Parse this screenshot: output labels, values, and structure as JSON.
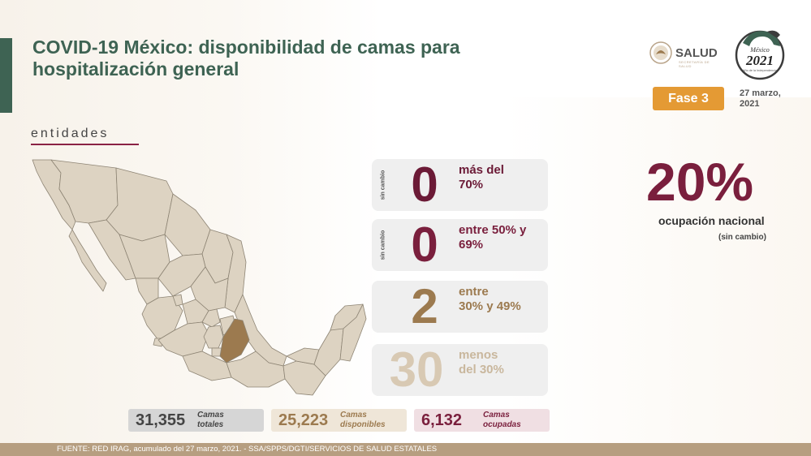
{
  "header": {
    "title_line1": "COVID-19 México: disponibilidad de camas para",
    "title_line2": "hospitalización general",
    "section_label": "entidades"
  },
  "logos": {
    "salud": "SALUD",
    "salud_sub": "SECRETARÍA DE SALUD",
    "badge_top": "México",
    "badge_year": "2021",
    "badge_sub": "Año de la Independencia"
  },
  "phase": {
    "label": "Fase 3",
    "color": "#e49a34"
  },
  "date": {
    "line1": "27 marzo,",
    "line2": "2021"
  },
  "categories": [
    {
      "status": "sin cambio",
      "count": "0",
      "label_line1": "más del",
      "label_line2": "70%",
      "number_color": "#6b1a36",
      "label_color": "#6b1a36"
    },
    {
      "status": "sin cambio",
      "count": "0",
      "label_line1": "entre 50% y",
      "label_line2": "69%",
      "number_color": "#7a1f3d",
      "label_color": "#7a1f3d"
    },
    {
      "status": "",
      "count": "2",
      "label_line1": "entre",
      "label_line2": "30% y 49%",
      "number_color": "#9c7a4f",
      "label_color": "#9c7a4f"
    },
    {
      "status": "",
      "count": "30",
      "label_line1": "menos",
      "label_line2": "del 30%",
      "number_color": "#d8c9b3",
      "label_color": "#c9b79d"
    }
  ],
  "national": {
    "value": "20%",
    "label": "ocupación nacional",
    "note": "(sin cambio)"
  },
  "stats": [
    {
      "value": "31,355",
      "caption_line1": "Camas",
      "caption_line2": "totales",
      "bg": "#d6d6d6",
      "color": "#444444"
    },
    {
      "value": "25,223",
      "caption_line1": "Camas",
      "caption_line2": "disponibles",
      "bg": "#efe6d8",
      "color": "#9c7a4f"
    },
    {
      "value": "6,132",
      "caption_line1": "Camas",
      "caption_line2": "ocupadas",
      "bg": "#f0dfe3",
      "color": "#7a1f3d"
    }
  ],
  "footer": {
    "text": "FUENTE: RED IRAG, acumulado del 27 marzo, 2021. -  SSA/SPPS/DGTI/SERVICIOS DE SALUD ESTATALES"
  },
  "map": {
    "base_color": "#ddd3c2",
    "border_color": "#8d8474",
    "highlight_color": "#9c7a4f",
    "highlight_state": "Puebla"
  }
}
